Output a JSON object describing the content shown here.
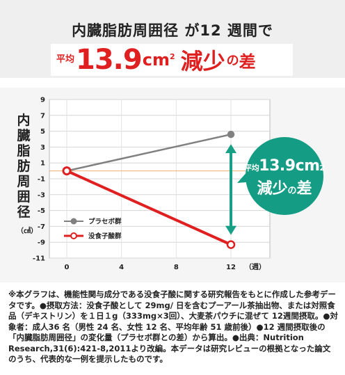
{
  "header": {
    "headline": "内臓脂肪周囲径 が12 週間で",
    "banner_avg": "平均",
    "banner_value": "13.9",
    "banner_unit": "cm",
    "banner_unit_sup": "2",
    "banner_reduce": "減少",
    "banner_no": "の",
    "banner_diff": "差"
  },
  "chart_data": {
    "type": "line",
    "x": [
      0,
      12
    ],
    "x_ticks": [
      "0",
      "4",
      "8",
      "12"
    ],
    "x_unit": "（週）",
    "y_ticks": [
      "9",
      "7",
      "5",
      "3",
      "1",
      "-1",
      "-3",
      "-5",
      "-7",
      "-9",
      "-11"
    ],
    "ylim": [
      -11,
      9
    ],
    "xlim": [
      0,
      12
    ],
    "ylabel": "内臓脂肪周囲径",
    "yunit": "（㎠）",
    "series": [
      {
        "name": "プラセボ群",
        "values": [
          0,
          4.6
        ],
        "color": "#808080"
      },
      {
        "name": "没食子酸群",
        "values": [
          0,
          -9.3
        ],
        "color": "#e02020"
      }
    ],
    "annotation": {
      "avg": "平均",
      "value": "13.9",
      "unit": "cm",
      "unit_sup": "2",
      "reduce": "減少",
      "no": "の",
      "diff": "差"
    },
    "colors": {
      "accent": "#e02020",
      "badge": "#159c84",
      "arrow": "#18a087",
      "baseline": "#f0b070"
    }
  },
  "footnote": "※本グラフは、機能性関与成分である没食子酸に関する研究報告をもとに作成した参考データです。●摂取方法：没食子酸として 29mg/ 日を含むプーアール茶抽出物、または対照食品（デキストリン）を１日１g（333mg×3回）、大麦茶パウチに混ぜて 12週間摂取。●対象者：成人36 名（男性 24 名、女性 12 名、平均年齢 51 歳前後）●12 週間摂取後の「内臓脂肪周囲径」の変化量（プラセボ群との差）から算出。●出典：Nutrition Research,31(6):421-8,2011より改編。本データは研究レビューの根拠となった論文のうち、代表的な一例を提示したものです。"
}
